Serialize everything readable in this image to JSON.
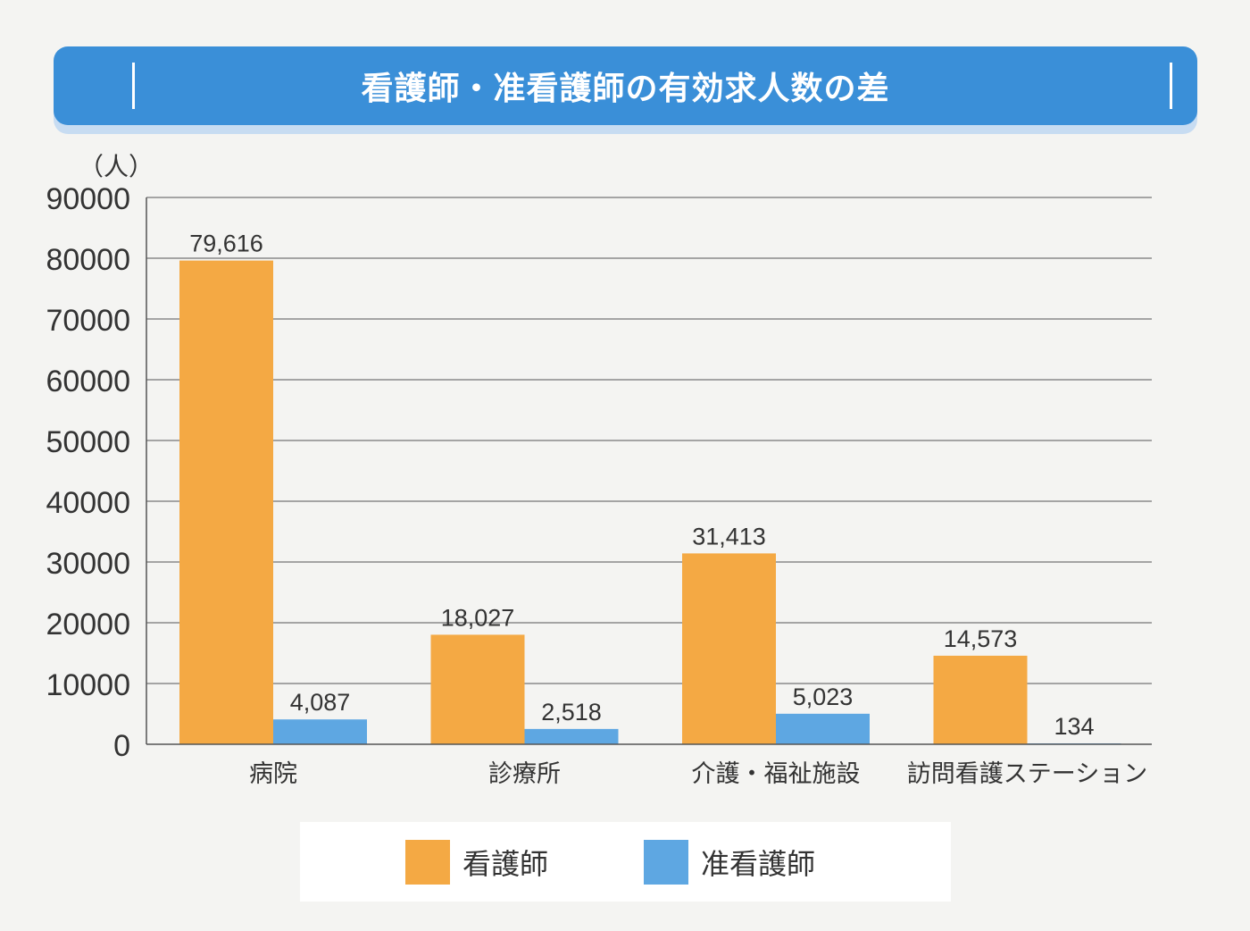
{
  "title": "看護師・准看護師の有効求人数の差",
  "chart_data": {
    "type": "bar",
    "unit_label": "（人）",
    "categories": [
      "病院",
      "診療所",
      "介護・福祉施設",
      "訪問看護ステーション"
    ],
    "series": [
      {
        "name": "看護師",
        "color": "#f4a944",
        "values": [
          79616,
          18027,
          31413,
          14573
        ],
        "labels": [
          "79,616",
          "18,027",
          "31,413",
          "14,573"
        ]
      },
      {
        "name": "准看護師",
        "color": "#5ea7e2",
        "values": [
          4087,
          2518,
          5023,
          134
        ],
        "labels": [
          "4,087",
          "2,518",
          "5,023",
          "134"
        ]
      }
    ],
    "ylim": [
      0,
      90000
    ],
    "yticks": [
      "0",
      "10000",
      "20000",
      "30000",
      "40000",
      "50000",
      "60000",
      "70000",
      "80000",
      "90000"
    ],
    "grid": true,
    "legend_position": "bottom"
  }
}
